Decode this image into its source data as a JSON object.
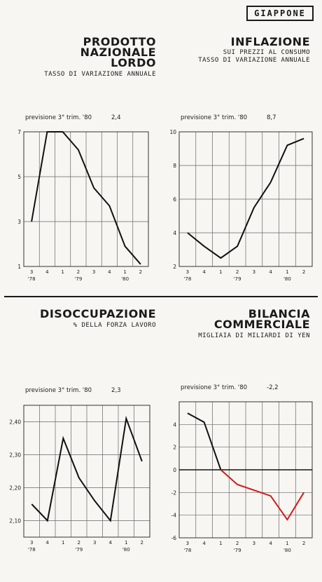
{
  "header": {
    "country": "GIAPPONE"
  },
  "panels": {
    "gnp": {
      "title": [
        "PRODOTTO",
        "NAZIONALE",
        "LORDO"
      ],
      "subtitle": [
        "TASSO DI VARIAZIONE ANNUALE"
      ]
    },
    "inflation": {
      "title": [
        "INFLAZIONE"
      ],
      "subtitle": [
        "SUI PREZZI AL CONSUMO",
        "TASSO DI VARIAZIONE ANNUALE"
      ]
    },
    "unemployment": {
      "title": [
        "DISOCCUPAZIONE"
      ],
      "subtitle": [
        "% DELLA FORZA LAVORO"
      ]
    },
    "trade": {
      "title": [
        "BILANCIA",
        "COMMERCIALE"
      ],
      "subtitle": [
        "MIGLIAIA DI MILIARDI DI YEN"
      ]
    }
  },
  "chart_data": [
    {
      "id": "gnp",
      "type": "line",
      "forecast_label": "previsione 3° trim. '80",
      "forecast_value": "2,4",
      "x_quarters": [
        "3",
        "4",
        "1",
        "2",
        "3",
        "4",
        "1",
        "2"
      ],
      "x_years": [
        "'78",
        "'79",
        "'80"
      ],
      "y_ticks": [
        1,
        3,
        5,
        7
      ],
      "y_tick_labels": [
        "1",
        "3",
        "5",
        "7"
      ],
      "ylim": [
        1,
        7
      ],
      "series": [
        {
          "values": [
            3.0,
            7.0,
            7.0,
            6.2,
            4.5,
            3.7,
            1.9,
            1.1
          ],
          "color": "#111111"
        }
      ]
    },
    {
      "id": "inflation",
      "type": "line",
      "forecast_label": "previsione 3° trim. '80",
      "forecast_value": "8,7",
      "x_quarters": [
        "3",
        "4",
        "1",
        "2",
        "3",
        "4",
        "1",
        "2"
      ],
      "x_years": [
        "'78",
        "'79",
        "'80"
      ],
      "y_ticks": [
        2,
        4,
        6,
        8,
        10
      ],
      "y_tick_labels": [
        "2",
        "4",
        "6",
        "8",
        "10"
      ],
      "ylim": [
        2,
        10
      ],
      "series": [
        {
          "values": [
            4.0,
            3.2,
            2.5,
            3.2,
            5.5,
            7.0,
            9.2,
            9.6
          ],
          "color": "#111111"
        }
      ]
    },
    {
      "id": "unemployment",
      "type": "line",
      "forecast_label": "previsione 3° trim. '80",
      "forecast_value": "2,3",
      "x_quarters": [
        "3",
        "4",
        "1",
        "2",
        "3",
        "4",
        "1",
        "2"
      ],
      "x_years": [
        "'78",
        "'79",
        "'80"
      ],
      "y_ticks": [
        2.1,
        2.2,
        2.3,
        2.4
      ],
      "y_tick_labels": [
        "2,10",
        "2,20",
        "2,30",
        "2,40"
      ],
      "ylim": [
        2.05,
        2.45
      ],
      "series": [
        {
          "values": [
            2.15,
            2.1,
            2.35,
            2.23,
            2.16,
            2.1,
            2.41,
            2.28
          ],
          "color": "#111111"
        }
      ]
    },
    {
      "id": "trade",
      "type": "line",
      "forecast_label": "previsione 3° trim. '80",
      "forecast_value": "-2,2",
      "x_quarters": [
        "3",
        "4",
        "1",
        "2",
        "3",
        "4",
        "1",
        "2"
      ],
      "x_years": [
        "'78",
        "'79",
        "'80"
      ],
      "y_ticks": [
        -6,
        -4,
        -2,
        0,
        2,
        4
      ],
      "y_tick_labels": [
        "-6",
        "-4",
        "-2",
        "0",
        "2",
        "4"
      ],
      "ylim": [
        -6,
        6
      ],
      "zero_line": true,
      "series": [
        {
          "values": [
            5.0,
            4.2,
            0.0
          ],
          "start_index": 0,
          "color": "#111111"
        },
        {
          "values": [
            0.0,
            -1.3,
            -1.8,
            -2.3,
            -4.4,
            -2.0
          ],
          "start_index": 2,
          "color": "#d11a1a"
        }
      ]
    }
  ]
}
